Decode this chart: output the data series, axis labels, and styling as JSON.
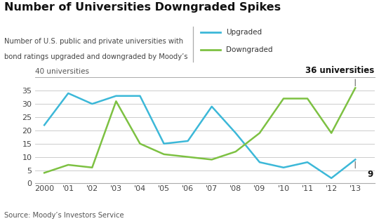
{
  "title": "Number of Universities Downgraded Spikes",
  "subtitle_line1": "Number of U.S. public and private universities with",
  "subtitle_line2": "bond ratings upgraded and downgraded by Moody’s",
  "source": "Source: Moody’s Investors Service",
  "years": [
    2000,
    2001,
    2002,
    2003,
    2004,
    2005,
    2006,
    2007,
    2008,
    2009,
    2010,
    2011,
    2012,
    2013
  ],
  "upgraded": [
    22,
    34,
    30,
    33,
    33,
    15,
    16,
    29,
    19,
    8,
    6,
    8,
    2,
    9
  ],
  "downgraded": [
    4,
    7,
    6,
    31,
    15,
    11,
    10,
    9,
    12,
    19,
    32,
    32,
    19,
    36
  ],
  "upgraded_color": "#3cb8d8",
  "downgraded_color": "#7dc142",
  "ylim": [
    0,
    40
  ],
  "yticks": [
    0,
    5,
    10,
    15,
    20,
    25,
    30,
    35
  ],
  "ylabel_top": "40 universities",
  "annotation_top_label": "36 universities",
  "annotation_bottom_label": "9",
  "grid_color": "#cccccc",
  "bg_color": "#ffffff",
  "tick_labels": [
    "2000",
    "'01",
    "'02",
    "'03",
    "'04",
    "'05",
    "'06",
    "'07",
    "'08",
    "'09",
    "'10",
    "'11",
    "'12",
    "'13"
  ],
  "legend_upgraded": "Upgraded",
  "legend_downgraded": "Downgraded"
}
